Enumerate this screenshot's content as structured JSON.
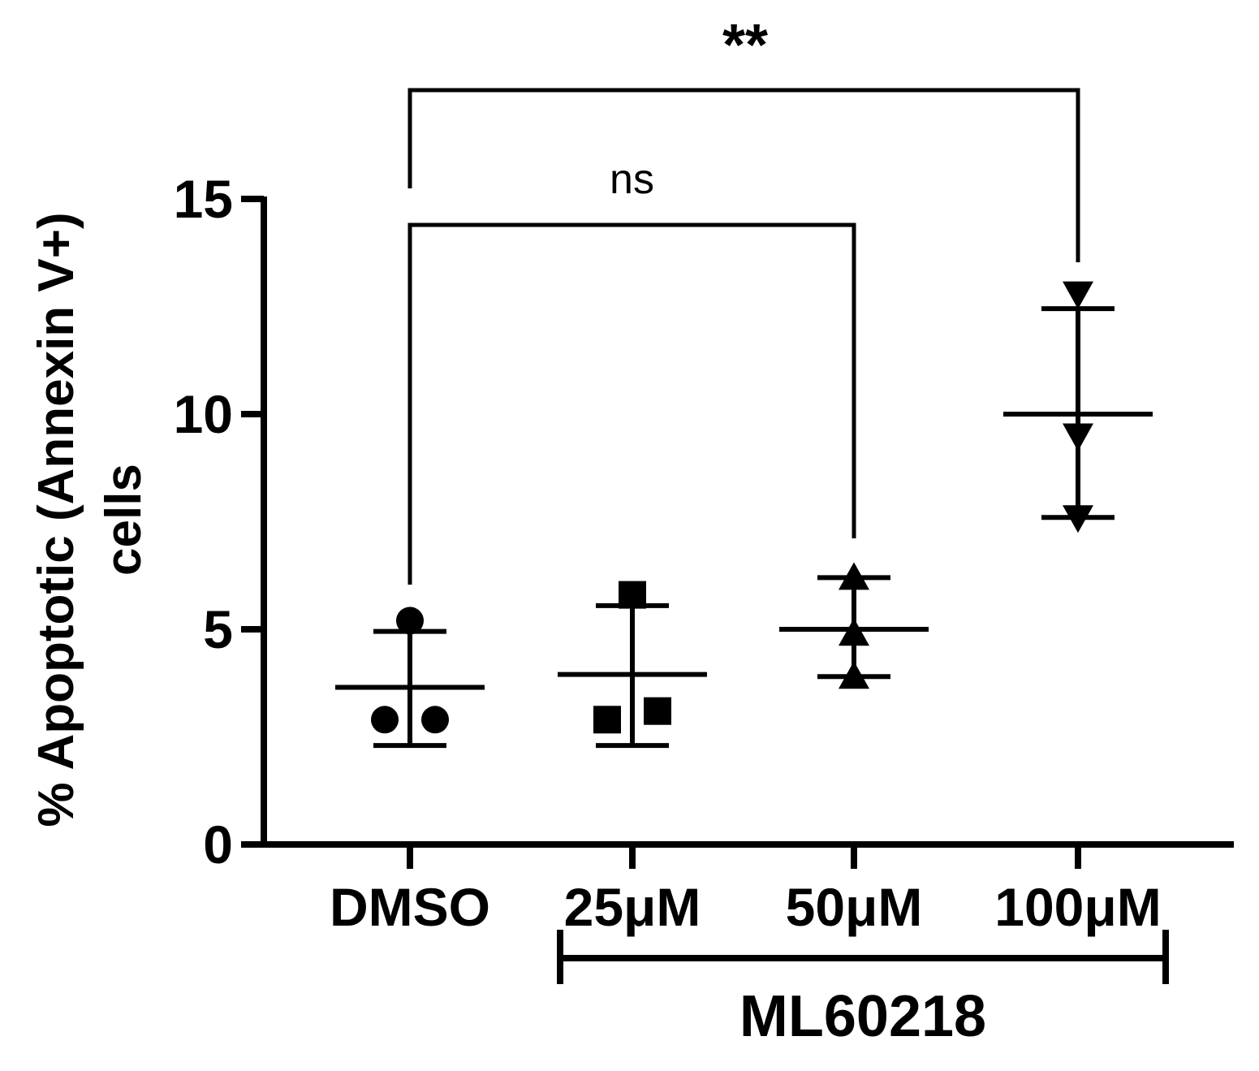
{
  "chart_data": {
    "type": "scatter",
    "title": "",
    "ylabel_line1": "% Apoptotic (Annexin V+)",
    "ylabel_line2": "cells",
    "xlabel": "",
    "ylim": [
      0,
      15
    ],
    "yticks": [
      0,
      5,
      10,
      15
    ],
    "yticklabels": [
      "0",
      "5",
      "10",
      "15"
    ],
    "categories": [
      "DMSO",
      "25μM",
      "50μM",
      "100μM"
    ],
    "group_bracket": {
      "label": "ML60218",
      "spans": [
        "25μM",
        "100μM"
      ]
    },
    "series": [
      {
        "category": "DMSO",
        "marker": "circle",
        "points": [
          5.2,
          2.9,
          2.9
        ],
        "mean": 3.65,
        "sd_low": 2.3,
        "sd_high": 4.95
      },
      {
        "category": "25μM",
        "marker": "square",
        "points": [
          5.8,
          2.9,
          3.1
        ],
        "mean": 3.95,
        "sd_low": 2.3,
        "sd_high": 5.55
      },
      {
        "category": "50μM",
        "marker": "triangle-up",
        "points": [
          6.2,
          4.9,
          3.9
        ],
        "mean": 5.0,
        "sd_low": 3.9,
        "sd_high": 6.2
      },
      {
        "category": "100μM",
        "marker": "triangle-down",
        "points": [
          12.8,
          9.5,
          7.6
        ],
        "mean": 10.0,
        "sd_low": 7.6,
        "sd_high": 12.45
      }
    ],
    "comparisons": [
      {
        "from": "DMSO",
        "to": "50μM",
        "label": "ns"
      },
      {
        "from": "DMSO",
        "to": "100μM",
        "label": "**"
      }
    ],
    "grid": false,
    "legend": "none",
    "color": "#000000"
  }
}
